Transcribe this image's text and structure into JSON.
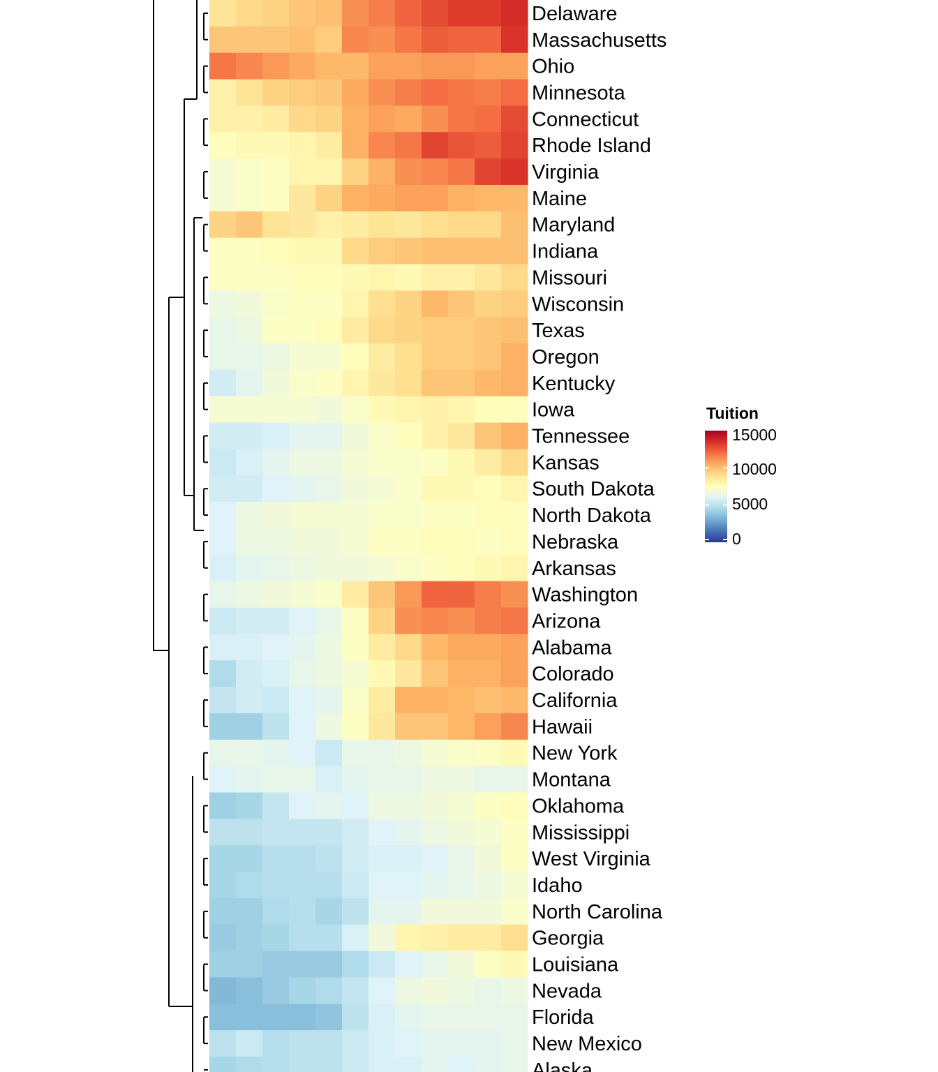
{
  "chart_data": {
    "type": "heatmap",
    "rows": [
      "Delaware",
      "Massachusetts",
      "Ohio",
      "Minnesota",
      "Connecticut",
      "Rhode Island",
      "Virginia",
      "Maine",
      "Maryland",
      "Indiana",
      "Missouri",
      "Wisconsin",
      "Texas",
      "Oregon",
      "Kentucky",
      "Iowa",
      "Tennessee",
      "Kansas",
      "South Dakota",
      "North Dakota",
      "Nebraska",
      "Arkansas",
      "Washington",
      "Arizona",
      "Alabama",
      "Colorado",
      "California",
      "Hawaii",
      "New York",
      "Montana",
      "Oklahoma",
      "Mississippi",
      "West Virginia",
      "Idaho",
      "North Carolina",
      "Georgia",
      "Louisiana",
      "Nevada",
      "Florida",
      "New Mexico",
      "Alaska"
    ],
    "values": [
      [
        8800,
        9200,
        9400,
        9800,
        10000,
        11200,
        11600,
        12200,
        12800,
        13200,
        13200,
        13600
      ],
      [
        9800,
        9800,
        9800,
        10000,
        9600,
        11400,
        11200,
        11800,
        12400,
        12200,
        12200,
        13400
      ],
      [
        11800,
        11400,
        11000,
        10600,
        10200,
        10200,
        10800,
        10800,
        11000,
        11000,
        10800,
        10800
      ],
      [
        8200,
        8800,
        9400,
        9600,
        9800,
        10600,
        11200,
        11600,
        12000,
        11800,
        11600,
        12000
      ],
      [
        8200,
        8200,
        8400,
        9200,
        9400,
        10400,
        10800,
        10600,
        11200,
        11800,
        12000,
        12800
      ],
      [
        7600,
        7800,
        7800,
        8000,
        8400,
        10400,
        11400,
        11800,
        13000,
        12600,
        12400,
        13000
      ],
      [
        7000,
        7200,
        7400,
        8000,
        8000,
        9400,
        10400,
        11200,
        11400,
        11800,
        13000,
        13400
      ],
      [
        7000,
        7200,
        7400,
        8600,
        9400,
        10400,
        10600,
        10800,
        10800,
        10400,
        10200,
        10200
      ],
      [
        9400,
        9800,
        8800,
        8600,
        8200,
        8400,
        8800,
        8600,
        9000,
        9200,
        9200,
        10000
      ],
      [
        7400,
        7400,
        7600,
        7800,
        7800,
        9200,
        9600,
        9800,
        10000,
        10000,
        10000,
        10000
      ],
      [
        7400,
        7400,
        7400,
        7600,
        7600,
        7800,
        8000,
        7800,
        8200,
        8200,
        8600,
        9200
      ],
      [
        6600,
        6800,
        7200,
        7400,
        7400,
        8000,
        9000,
        9400,
        10200,
        9800,
        9400,
        9600
      ],
      [
        6400,
        6600,
        7400,
        7400,
        7600,
        8400,
        9200,
        9400,
        9600,
        9600,
        9800,
        10000
      ],
      [
        6400,
        6400,
        6600,
        7000,
        7000,
        7600,
        8400,
        9000,
        9600,
        9600,
        9800,
        10400
      ],
      [
        5600,
        6200,
        6800,
        7200,
        7400,
        8000,
        8600,
        9000,
        9800,
        9800,
        10200,
        10400
      ],
      [
        7000,
        7000,
        7000,
        7000,
        6800,
        7200,
        7800,
        8000,
        8200,
        8000,
        7600,
        7600
      ],
      [
        5600,
        5600,
        5800,
        6200,
        6200,
        6800,
        7200,
        7600,
        8200,
        8600,
        9800,
        10400
      ],
      [
        5400,
        5800,
        6200,
        6600,
        6600,
        7000,
        7200,
        7200,
        7400,
        7800,
        8400,
        9200
      ],
      [
        5600,
        5600,
        6000,
        6200,
        6400,
        6800,
        7000,
        7200,
        7800,
        7800,
        7600,
        8000
      ],
      [
        6000,
        6600,
        6800,
        7000,
        7000,
        7000,
        7200,
        7200,
        7400,
        7400,
        7600,
        7600
      ],
      [
        6000,
        6600,
        6600,
        6800,
        6800,
        7000,
        7400,
        7400,
        7600,
        7600,
        7400,
        7600
      ],
      [
        5800,
        6200,
        6400,
        6600,
        6800,
        6800,
        7000,
        7200,
        7400,
        7600,
        7800,
        8000
      ],
      [
        6400,
        6600,
        6800,
        7000,
        7200,
        8400,
        9800,
        11000,
        12200,
        12200,
        11600,
        11200
      ],
      [
        5400,
        5600,
        5600,
        6000,
        6400,
        7400,
        9400,
        11200,
        11400,
        11200,
        11600,
        11800
      ],
      [
        5800,
        5800,
        6000,
        6200,
        6600,
        7400,
        8400,
        9200,
        10200,
        10600,
        10600,
        10800
      ],
      [
        4600,
        5600,
        5800,
        6400,
        6600,
        7000,
        7800,
        8600,
        9800,
        10400,
        10400,
        10800
      ],
      [
        5200,
        5600,
        5400,
        6000,
        6200,
        7200,
        8400,
        10400,
        10400,
        10200,
        10000,
        10200
      ],
      [
        4200,
        4200,
        5000,
        6000,
        6600,
        7400,
        8600,
        9800,
        9800,
        10200,
        10800,
        11400
      ],
      [
        6400,
        6400,
        6200,
        6000,
        5400,
        6400,
        6400,
        6600,
        7000,
        7200,
        7400,
        7800
      ],
      [
        6000,
        6200,
        6400,
        6400,
        5800,
        6200,
        6400,
        6400,
        6600,
        6600,
        6400,
        6400
      ],
      [
        4200,
        4400,
        5200,
        6000,
        6200,
        6000,
        6600,
        6600,
        6800,
        7000,
        7400,
        7600
      ],
      [
        5000,
        5000,
        5200,
        5200,
        5200,
        5600,
        6000,
        6200,
        6600,
        6800,
        7000,
        7400
      ],
      [
        4400,
        4400,
        4800,
        4800,
        5000,
        5600,
        5800,
        5800,
        6000,
        6400,
        6800,
        7400
      ],
      [
        4400,
        4600,
        4800,
        4800,
        4800,
        5400,
        6000,
        6000,
        6200,
        6400,
        6600,
        7000
      ],
      [
        4200,
        4200,
        4600,
        4800,
        4400,
        5000,
        6200,
        6200,
        6800,
        6800,
        6800,
        7200
      ],
      [
        4000,
        4200,
        4400,
        4800,
        4800,
        5800,
        6800,
        8000,
        8200,
        8400,
        8400,
        9000
      ],
      [
        4200,
        4200,
        4000,
        4000,
        4000,
        4600,
        5400,
        6000,
        6400,
        6800,
        7400,
        7800
      ],
      [
        3400,
        3600,
        4000,
        4400,
        4600,
        5200,
        6000,
        6600,
        6800,
        6600,
        6400,
        6600
      ],
      [
        3600,
        3600,
        3600,
        3600,
        3800,
        5000,
        5800,
        6200,
        6400,
        6400,
        6400,
        6400
      ],
      [
        5000,
        5400,
        4800,
        5000,
        5000,
        5400,
        5800,
        6000,
        6200,
        6200,
        6200,
        6400
      ],
      [
        4400,
        4600,
        4800,
        5000,
        5000,
        5400,
        5800,
        5800,
        6200,
        6000,
        6200,
        6400
      ]
    ],
    "legend": {
      "title": "Tuition",
      "ticks": [
        "15000",
        "10000",
        "5000",
        "0"
      ],
      "range": [
        0,
        15000
      ],
      "position": "right"
    },
    "palette": [
      "#313695",
      "#4575B4",
      "#74ADD1",
      "#ABD9E9",
      "#E0F3F8",
      "#FFFFBF",
      "#FEE090",
      "#FDAE61",
      "#F46D43",
      "#D73027",
      "#A50026"
    ],
    "row_dendrogram": "left"
  }
}
